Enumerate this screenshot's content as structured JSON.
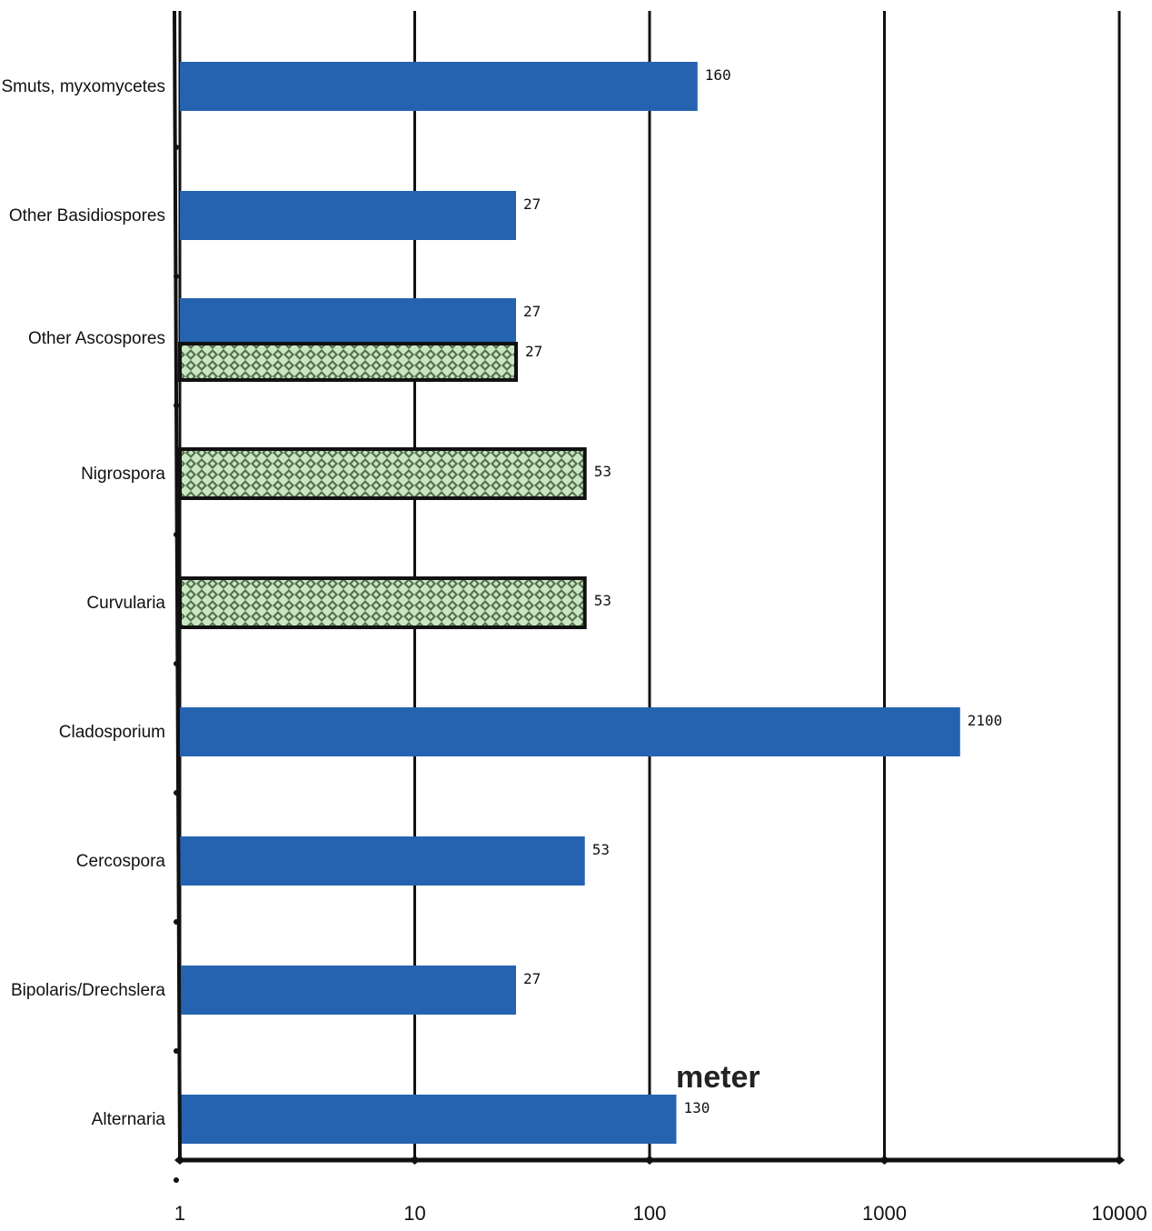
{
  "chart_data": {
    "type": "bar",
    "orientation": "horizontal",
    "x_scale": "log",
    "xlim": [
      1,
      10000
    ],
    "x_ticks": [
      "1",
      "10",
      "100",
      "1000",
      "10000"
    ],
    "grid": "vertical lines at ticks",
    "categories": [
      "Smuts, myxomycetes",
      "Other Basidiospores",
      "Other Ascospores",
      "Nigrospora",
      "Curvularia",
      "Cladosporium",
      "Cercospora",
      "Bipolaris/Drechslera",
      "Alternaria"
    ],
    "series": [
      {
        "color": "#2563b0",
        "values": [
          160,
          27,
          27,
          null,
          null,
          2100,
          53,
          27,
          130
        ]
      },
      {
        "color": "#c8e6c0",
        "pattern": "checkered",
        "values": [
          null,
          null,
          27,
          53,
          53,
          null,
          null,
          null,
          null
        ]
      }
    ],
    "annotations": [
      "meter"
    ]
  }
}
